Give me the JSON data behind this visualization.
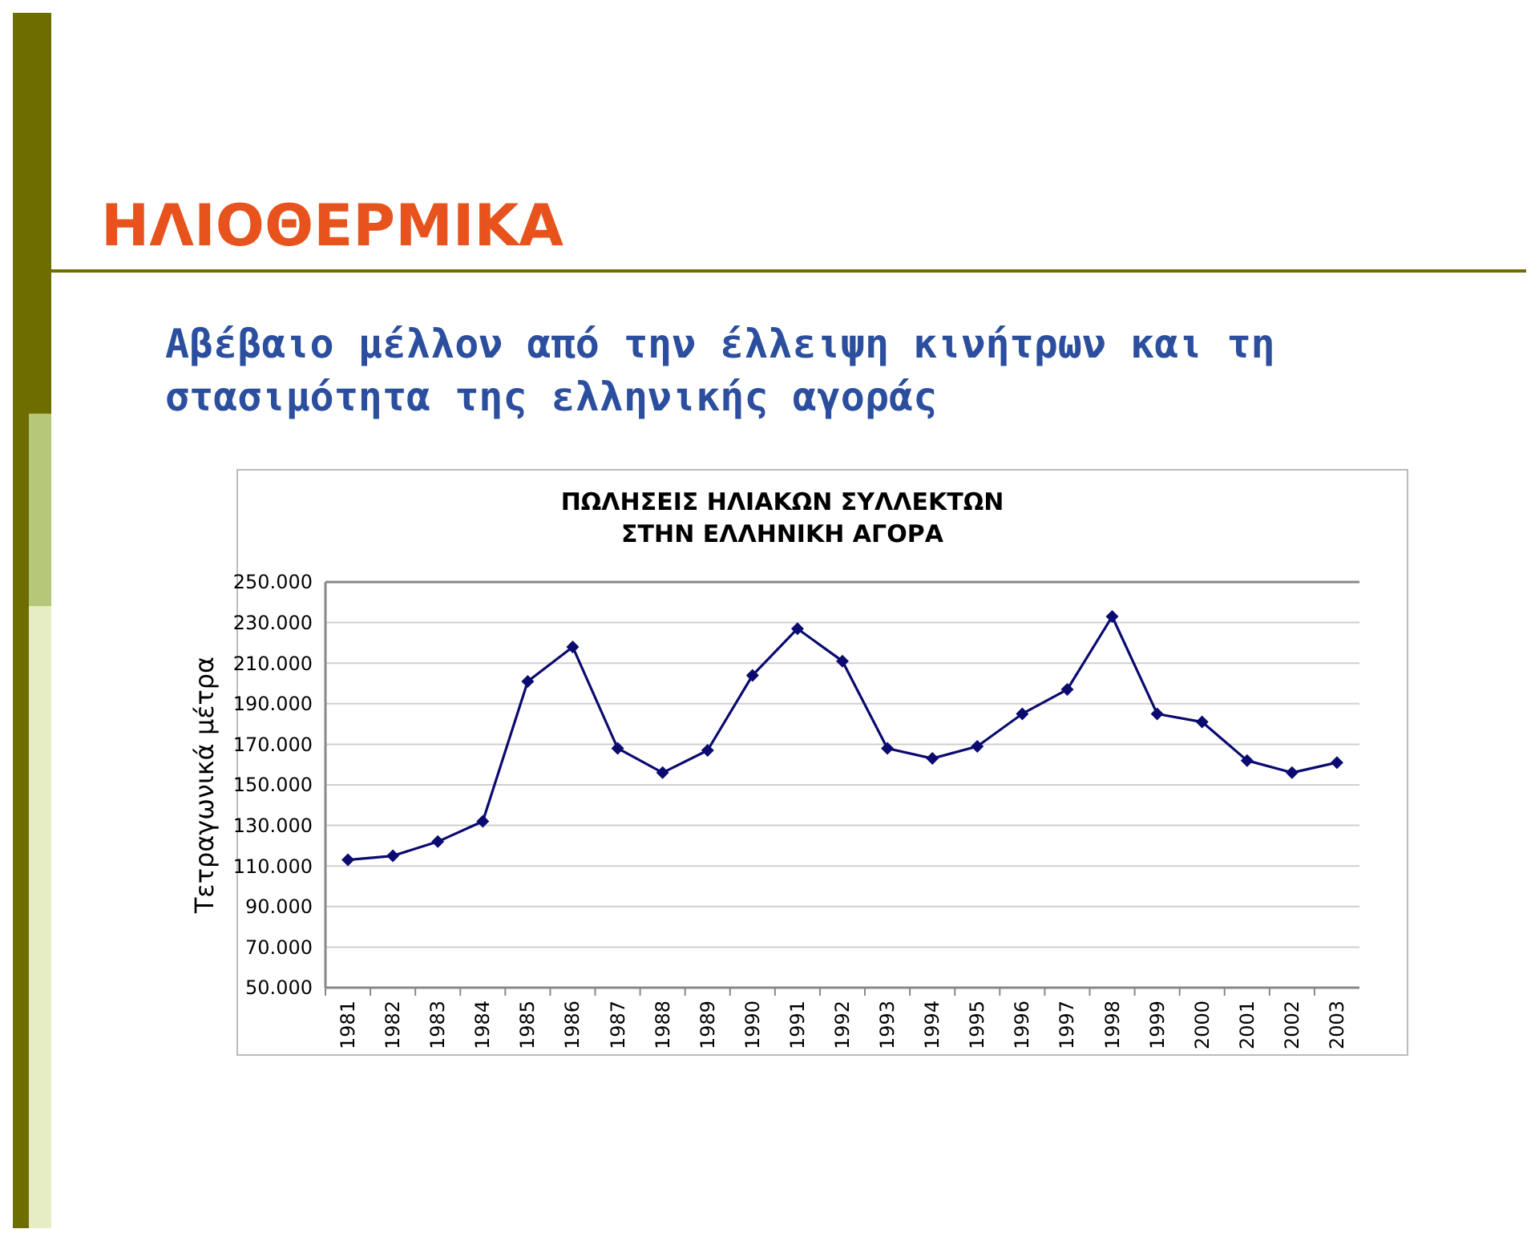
{
  "chart_data": {
    "type": "line",
    "title": "ΗΛΙΟΘΕΡΜΙΚΑ",
    "subtitle": "Αβέβαιο μέλλον από την έλλειψη κινήτρων και τη στασιμότητα της ελληνικής αγοράς",
    "annotations": [
      "ΠΩΛΗΣΕΙΣ ΗΛΙΑΚΩΝ ΣΥΛΛΕΚΤΩΝ ΣΤΗΝ ΕΛΛΗΝΙΚΗ ΑΓΟΡΑ"
    ],
    "ylabel": "Τετραγωνικά μέτρα",
    "categories": [
      "1981",
      "1982",
      "1983",
      "1984",
      "1985",
      "1986",
      "1987",
      "1988",
      "1989",
      "1990",
      "1991",
      "1992",
      "1993",
      "1994",
      "1995",
      "1996",
      "1997",
      "1998",
      "1999",
      "2000",
      "2001",
      "2002",
      "2003"
    ],
    "series": [
      {
        "color": "#0a0a70",
        "values": [
          113000,
          115000,
          122000,
          132000,
          201000,
          218000,
          168000,
          156000,
          167000,
          204000,
          227000,
          211000,
          168000,
          163000,
          169000,
          185000,
          197000,
          233000,
          185000,
          181000,
          162000,
          156000,
          161000
        ]
      }
    ],
    "ylim": [
      50000,
      250000
    ],
    "yticks": [
      {
        "value": 50000,
        "label": "50.000"
      },
      {
        "value": 70000,
        "label": "70.000"
      },
      {
        "value": 90000,
        "label": "90.000"
      },
      {
        "value": 110000,
        "label": "110.000"
      },
      {
        "value": 130000,
        "label": "130.000"
      },
      {
        "value": 150000,
        "label": "150.000"
      },
      {
        "value": 170000,
        "label": "170.000"
      },
      {
        "value": 190000,
        "label": "190.000"
      },
      {
        "value": 210000,
        "label": "210.000"
      },
      {
        "value": 230000,
        "label": "230.000"
      },
      {
        "value": 250000,
        "label": "250.000"
      }
    ],
    "grid": "y",
    "marker": "diamond",
    "line_style": "solid"
  }
}
